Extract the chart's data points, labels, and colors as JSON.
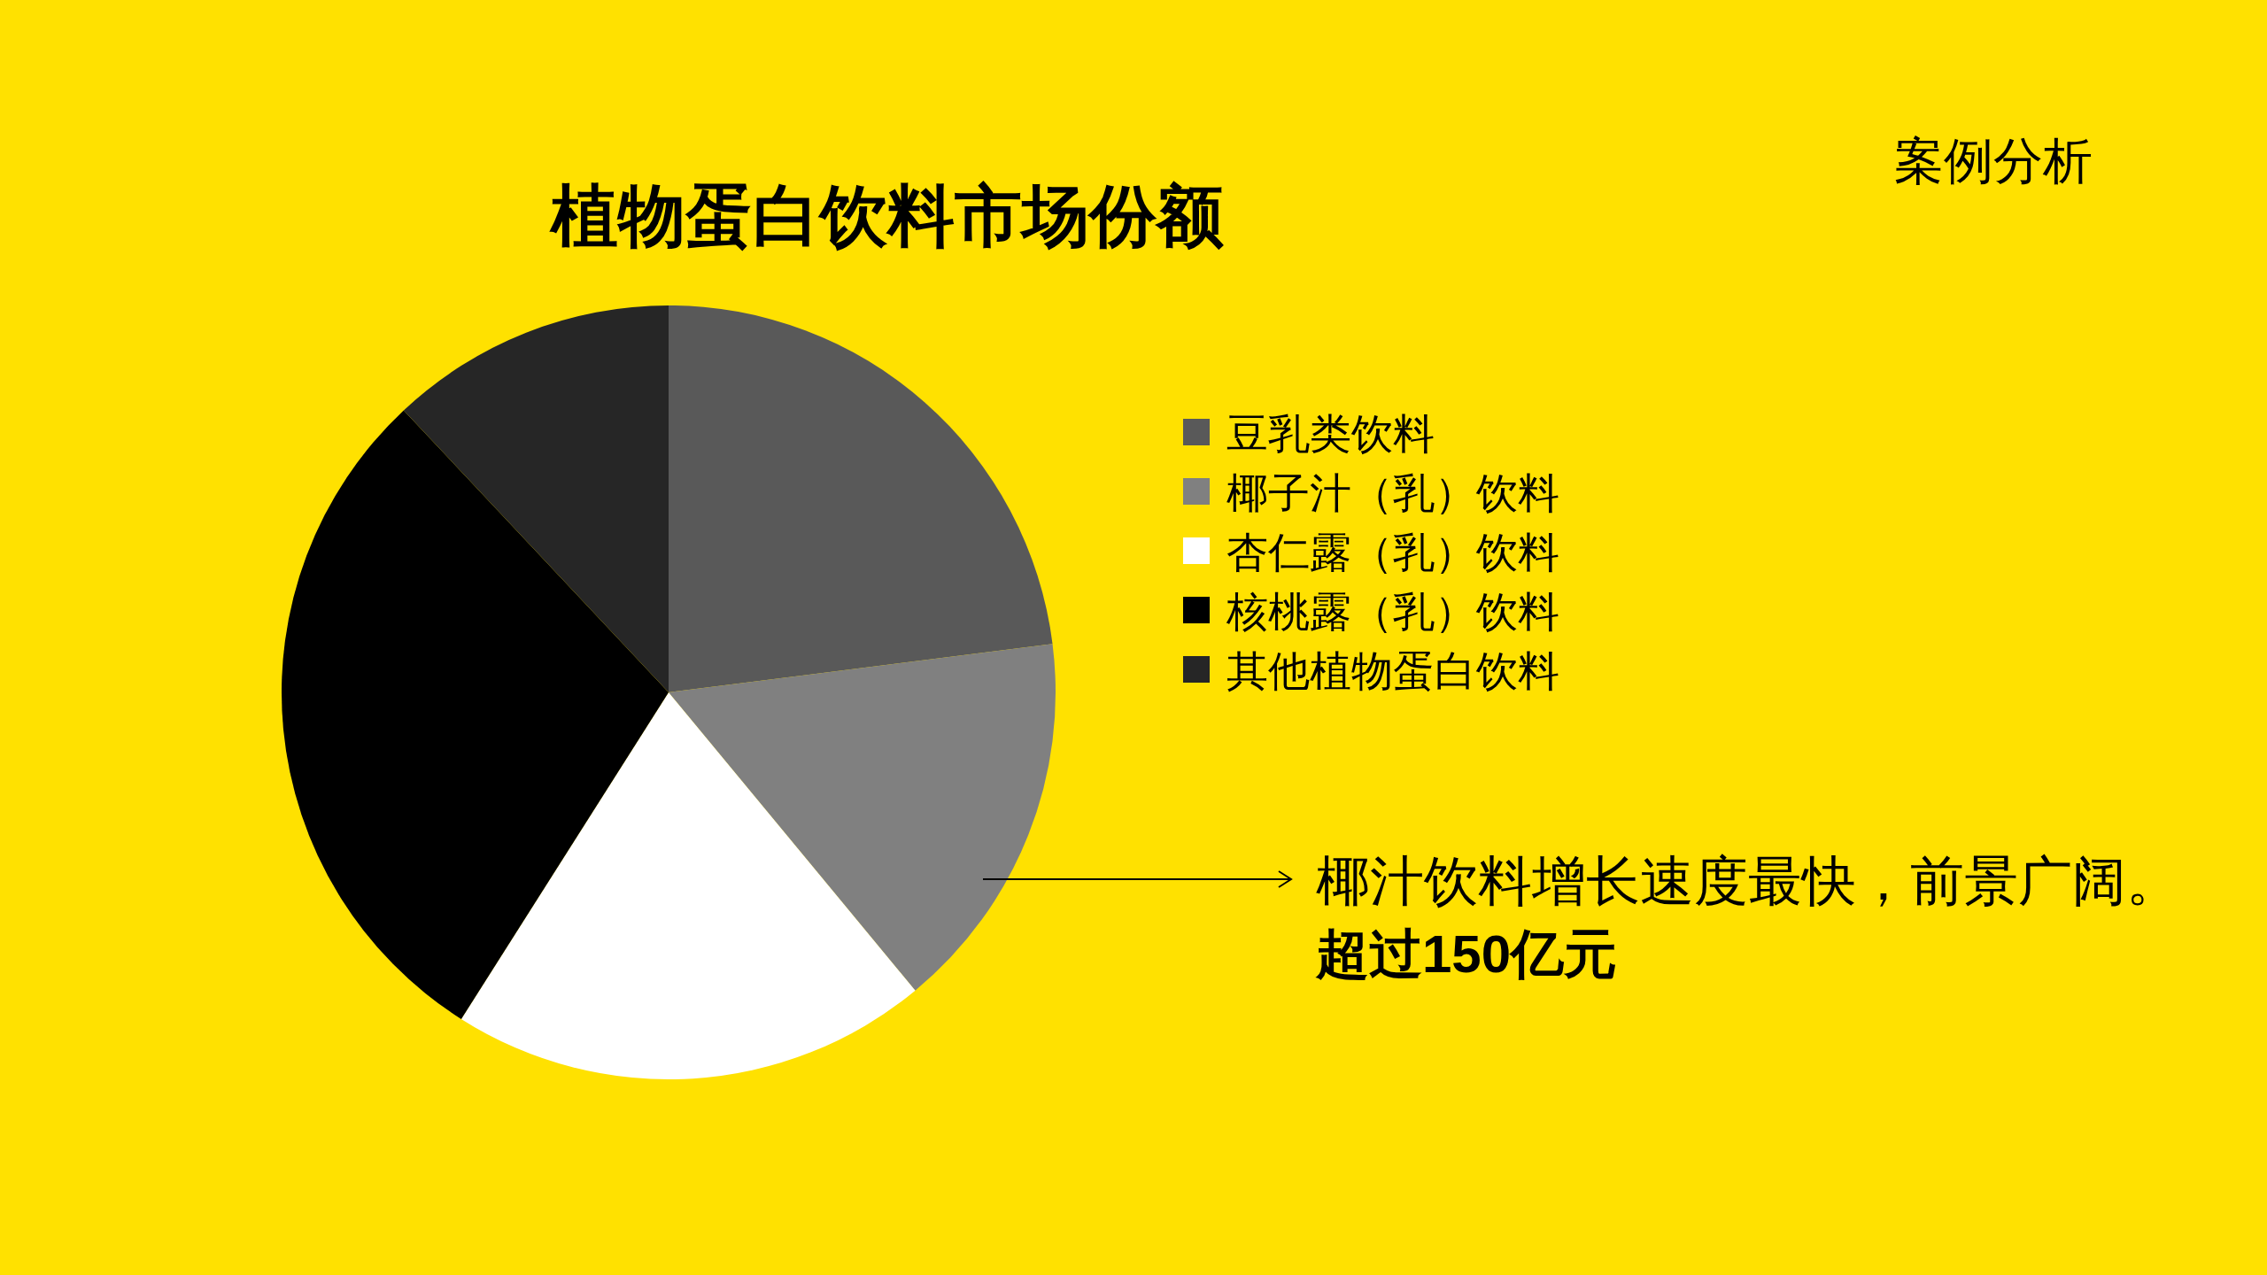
{
  "chart_data": {
    "type": "pie",
    "title": "植物蛋白饮料市场份额",
    "categories": [
      "豆乳类饮料",
      "椰子汁（乳）饮料",
      "杏仁露（乳）饮料",
      "核桃露（乳）饮料",
      "其他植物蛋白饮料"
    ],
    "values": [
      23,
      16,
      20,
      29,
      12
    ],
    "colors": [
      "#595959",
      "#808080",
      "#ffffff",
      "#000000",
      "#262626"
    ],
    "legend": "right",
    "annotations": [
      "案例分析",
      "椰汁饮料增长速度最快，前景广阔。",
      "超过150亿元"
    ]
  }
}
